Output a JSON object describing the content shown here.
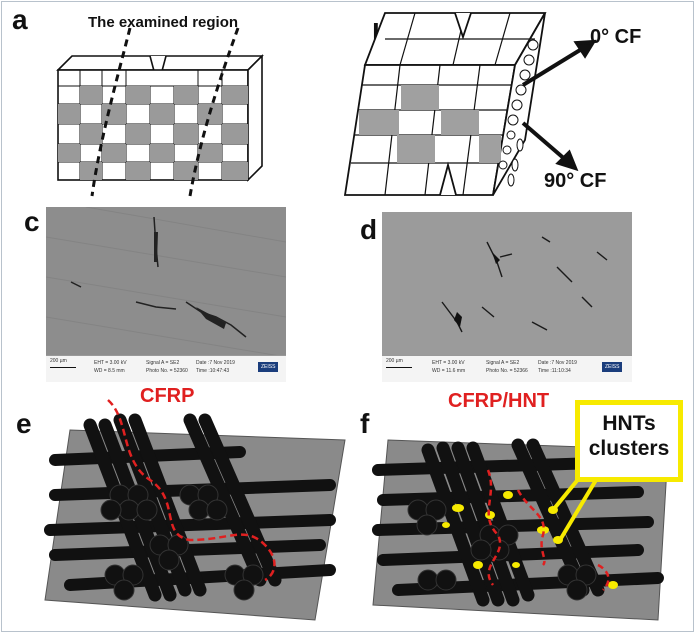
{
  "panel_labels": {
    "a": "a",
    "b": "b",
    "c": "c",
    "d": "d",
    "e": "e",
    "f": "f"
  },
  "panel_a": {
    "region_label": "The examined region"
  },
  "panel_b": {
    "fiber_0": "0° CF",
    "fiber_90": "90° CF"
  },
  "panel_c": {
    "caption": "CFRP",
    "scale": "200 µm",
    "eht": "EHT = 3.00 kV",
    "wd": "WD = 8.5 mm",
    "signal": "Signal A = SE2",
    "photo": "Photo No. = 52360",
    "date": "Date :7 Nov 2019",
    "time": "Time :10:47:43",
    "brand": "ZEISS"
  },
  "panel_d": {
    "caption": "CFRP/HNT",
    "scale": "200 µm",
    "eht": "EHT = 3.00 kV",
    "wd": "WD = 11.6 mm",
    "signal": "Signal A = SE2",
    "photo": "Photo No. = 52366",
    "date": "Date :7 Nov 2019",
    "time": "Time :11:10:34",
    "brand": "ZEISS"
  },
  "panel_f": {
    "callout_line1": "HNTs",
    "callout_line2": "clusters"
  },
  "colors": {
    "crack": "#e02020",
    "hnt": "#f7ea00",
    "fiber": "#111111",
    "matrix": "#8a8a8a"
  }
}
